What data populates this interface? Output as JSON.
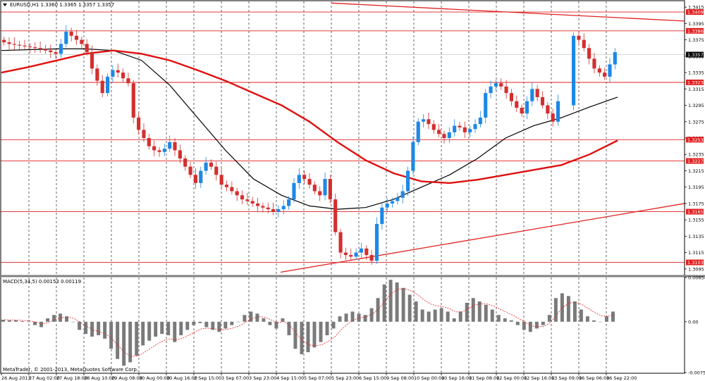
{
  "chart_data": [
    {
      "type": "candlestick",
      "title": "EURUSD,H1  1.3360 1.3365 1.3357 1.3357",
      "ylim": [
        1.3088,
        1.3422
      ],
      "y_ticks": [
        "1.3415",
        "1.3395",
        "1.3375",
        "1.3355",
        "1.3335",
        "1.3315",
        "1.3295",
        "1.3275",
        "1.3255",
        "1.3235",
        "1.3215",
        "1.3195",
        "1.3175",
        "1.3155",
        "1.3135",
        "1.3115",
        "1.3095"
      ],
      "x_labels": [
        "26 Aug 2013",
        "27 Aug 02:00",
        "27 Aug 18:00",
        "28 Aug 10:00",
        "29 Aug 08:00",
        "30 Aug 00:00",
        "30 Aug 16:00",
        "2 Sep 15:00",
        "3 Sep 07:00",
        "3 Sep 23:00",
        "4 Sep 15:00",
        "5 Sep 07:00",
        "5 Sep 23:00",
        "6 Sep 15:00",
        "9 Sep 08:00",
        "10 Sep 00:00",
        "10 Sep 16:00",
        "11 Sep 08:00",
        "12 Sep 00:00",
        "12 Sep 16:00",
        "13 Sep 09:00",
        "16 Sep 06:00",
        "16 Sep 22:00"
      ],
      "grid": true,
      "current_price": "1.3357",
      "horizontal_levels": [
        {
          "label": "1.3409",
          "value": 1.3409
        },
        {
          "label": "1.3386",
          "value": 1.3386
        },
        {
          "label": "1.3323",
          "value": 1.3323
        },
        {
          "label": "1.3253",
          "value": 1.3253
        },
        {
          "label": "1.3227",
          "value": 1.3227
        },
        {
          "label": "1.3165",
          "value": 1.3165
        },
        {
          "label": "1.3103",
          "value": 1.3103
        }
      ],
      "colors": {
        "up": "#1e88e5",
        "down": "#d32f2f",
        "level": "#e02020",
        "sma_fast": "#000000",
        "sma_slow": "#e01010"
      },
      "close_series": [
        1.3372,
        1.337,
        1.3369,
        1.3368,
        1.3367,
        1.3366,
        1.3365,
        1.3364,
        1.3362,
        1.336,
        1.3358,
        1.337,
        1.3385,
        1.338,
        1.3375,
        1.337,
        1.336,
        1.334,
        1.3325,
        1.331,
        1.333,
        1.3338,
        1.3335,
        1.3328,
        1.3322,
        1.328,
        1.3265,
        1.3255,
        1.3245,
        1.324,
        1.3238,
        1.3242,
        1.325,
        1.324,
        1.323,
        1.322,
        1.321,
        1.32,
        1.3215,
        1.3225,
        1.322,
        1.321,
        1.3198,
        1.3195,
        1.319,
        1.3185,
        1.318,
        1.3178,
        1.3175,
        1.3172,
        1.317,
        1.3168,
        1.3165,
        1.3168,
        1.3172,
        1.318,
        1.32,
        1.321,
        1.3205,
        1.3198,
        1.319,
        1.3185,
        1.3205,
        1.318,
        1.314,
        1.3115,
        1.3112,
        1.311,
        1.3115,
        1.312,
        1.3112,
        1.3105,
        1.315,
        1.317,
        1.3175,
        1.3178,
        1.3182,
        1.319,
        1.3215,
        1.325,
        1.3275,
        1.3278,
        1.3272,
        1.3265,
        1.326,
        1.3255,
        1.3262,
        1.327,
        1.3268,
        1.3262,
        1.3266,
        1.3272,
        1.328,
        1.331,
        1.3318,
        1.3322,
        1.3318,
        1.331,
        1.33,
        1.3292,
        1.3285,
        1.33,
        1.3315,
        1.3305,
        1.3295,
        1.3285,
        1.3275,
        1.33,
        1.331,
        1.3295,
        1.338,
        1.3375,
        1.3365,
        1.3352,
        1.334,
        1.3335,
        1.333,
        1.3345,
        1.336
      ],
      "moving_averages": [
        {
          "color": "#000000",
          "values": [
            1.3362,
            1.3363,
            1.3364,
            1.3364,
            1.3362,
            1.335,
            1.332,
            1.328,
            1.324,
            1.3205,
            1.3185,
            1.3172,
            1.3168,
            1.317,
            1.318,
            1.3195,
            1.321,
            1.323,
            1.3255,
            1.327,
            1.328,
            1.3293,
            1.3305
          ]
        },
        {
          "color": "#e01010",
          "values": [
            1.3335,
            1.3342,
            1.335,
            1.3358,
            1.3362,
            1.3358,
            1.335,
            1.3338,
            1.3325,
            1.331,
            1.3295,
            1.3275,
            1.325,
            1.3228,
            1.3212,
            1.3202,
            1.32,
            1.3204,
            1.321,
            1.3216,
            1.3222,
            1.3235,
            1.3252
          ]
        }
      ]
    },
    {
      "type": "bar",
      "title": "MACD(5,34,5) 0.00153 0.00119",
      "ylim": [
        -0.00751,
        0.00654
      ],
      "y_ticks": [
        "0.00654",
        "0.00",
        "-0.00751"
      ],
      "series": [
        {
          "values": [
            0.0003,
            0.0002,
            0.0002,
            0.0001,
            0.0,
            -0.0005,
            -0.0008,
            0.0005,
            0.001,
            0.0012,
            0.0008,
            0.0,
            -0.0012,
            -0.0018,
            -0.0022,
            -0.002,
            -0.0025,
            -0.004,
            -0.0055,
            -0.0065,
            -0.006,
            -0.005,
            -0.0035,
            -0.0028,
            -0.0022,
            -0.0018,
            -0.002,
            -0.003,
            -0.002,
            -0.0012,
            -0.0005,
            -0.0002,
            -0.0008,
            -0.0012,
            -0.0015,
            -0.001,
            -0.0005,
            0.0,
            0.001,
            0.0015,
            0.0012,
            0.0005,
            -0.0005,
            -0.001,
            0.0005,
            -0.002,
            -0.004,
            -0.0048,
            -0.0045,
            -0.0038,
            -0.003,
            -0.002,
            -0.001,
            0.0008,
            0.0012,
            0.0015,
            0.0012,
            0.001,
            0.002,
            0.0035,
            0.0055,
            0.0062,
            0.0058,
            0.005,
            0.004,
            0.003,
            0.0018,
            0.0015,
            0.0018,
            0.002,
            0.0015,
            0.0005,
            0.0015,
            0.0028,
            0.0035,
            0.003,
            0.0025,
            0.0018,
            0.001,
            0.0005,
            0.0002,
            -0.0005,
            -0.0012,
            -0.0015,
            -0.001,
            -0.0005,
            0.001,
            0.0035,
            0.0042,
            0.0038,
            0.003,
            0.0018,
            0.0008,
            0.0002,
            0.0,
            0.0008,
            0.0015
          ]
        }
      ]
    }
  ],
  "footer": {
    "copyright": "MetaTrader, © 2001-2013, MetaQuotes Software Corp."
  }
}
